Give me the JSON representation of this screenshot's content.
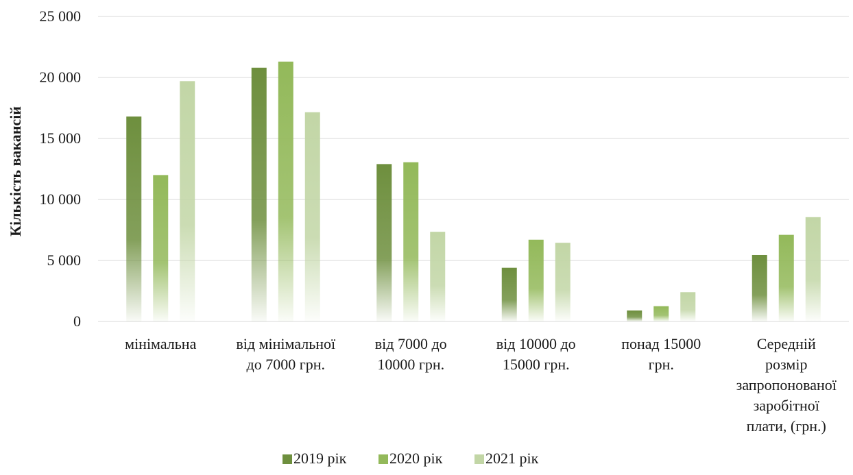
{
  "chart_data": {
    "type": "bar",
    "title": "",
    "xlabel": "",
    "ylabel": "Кількість вакансій",
    "ylim": [
      0,
      25000
    ],
    "yticks": [
      0,
      5000,
      10000,
      15000,
      20000,
      25000
    ],
    "ytick_labels": [
      "0",
      "5 000",
      "10 000",
      "15 000",
      "20 000",
      "25 000"
    ],
    "grid": true,
    "legend_position": "bottom",
    "categories": [
      [
        "мінімальна"
      ],
      [
        "від мінімальної",
        "до 7000 грн."
      ],
      [
        "від 7000 до",
        "10000 грн."
      ],
      [
        "від 10000 до",
        "15000 грн."
      ],
      [
        "понад 15000",
        "грн."
      ],
      [
        "Середній",
        "розмір",
        "запропонованої",
        "заробітної",
        "плати, (грн.)"
      ]
    ],
    "series": [
      {
        "name": "2019 рік",
        "color": "#6e8f3e",
        "values": [
          16800,
          20800,
          12900,
          4400,
          900,
          5450
        ]
      },
      {
        "name": "2020 рік",
        "color": "#93b95a",
        "values": [
          12000,
          21300,
          13050,
          6700,
          1250,
          7100
        ]
      },
      {
        "name": "2021 рік",
        "color": "#c2d6a6",
        "values": [
          19700,
          17150,
          7350,
          6450,
          2400,
          8550
        ]
      }
    ]
  }
}
